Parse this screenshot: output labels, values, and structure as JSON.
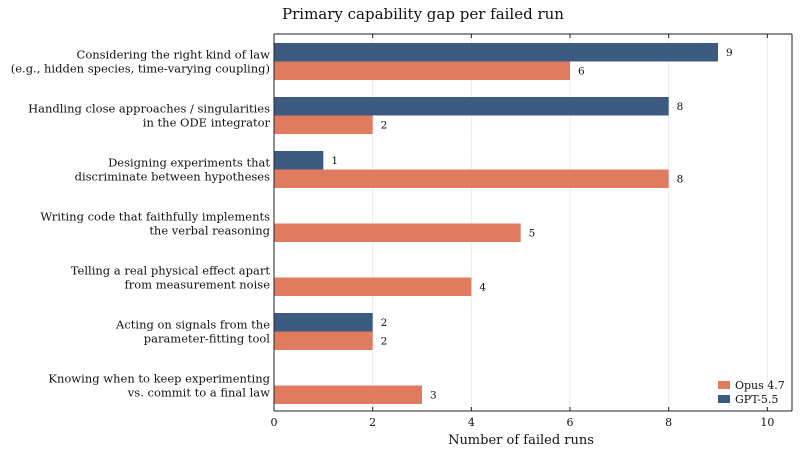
{
  "chart_data": {
    "type": "bar",
    "orientation": "horizontal",
    "title": "Primary capability gap per failed run",
    "xlabel": "Number of failed runs",
    "ylabel": "",
    "xlim": [
      0,
      10.5
    ],
    "xticks": [
      0,
      2,
      4,
      6,
      8,
      10
    ],
    "grid": true,
    "legend_position": "bottom-right",
    "categories": [
      [
        "Considering the right kind of law",
        "(e.g., hidden species, time-varying coupling)"
      ],
      [
        "Handling close approaches / singularities",
        "in the ODE integrator"
      ],
      [
        "Designing experiments that",
        "discriminate between hypotheses"
      ],
      [
        "Writing code that faithfully implements",
        "the verbal reasoning"
      ],
      [
        "Telling a real physical effect apart",
        "from measurement noise"
      ],
      [
        "Acting on signals from the",
        "parameter-fitting tool"
      ],
      [
        "Knowing when to keep experimenting",
        "vs. commit to a final law"
      ]
    ],
    "series": [
      {
        "name": "GPT-5.5",
        "color": "#3d5a80",
        "values": [
          9,
          8,
          1,
          0,
          0,
          2,
          0
        ]
      },
      {
        "name": "Opus 4.7",
        "color": "#e07b60",
        "values": [
          6,
          2,
          8,
          5,
          4,
          2,
          3
        ]
      }
    ],
    "legend_order": [
      "Opus 4.7",
      "GPT-5.5"
    ]
  }
}
